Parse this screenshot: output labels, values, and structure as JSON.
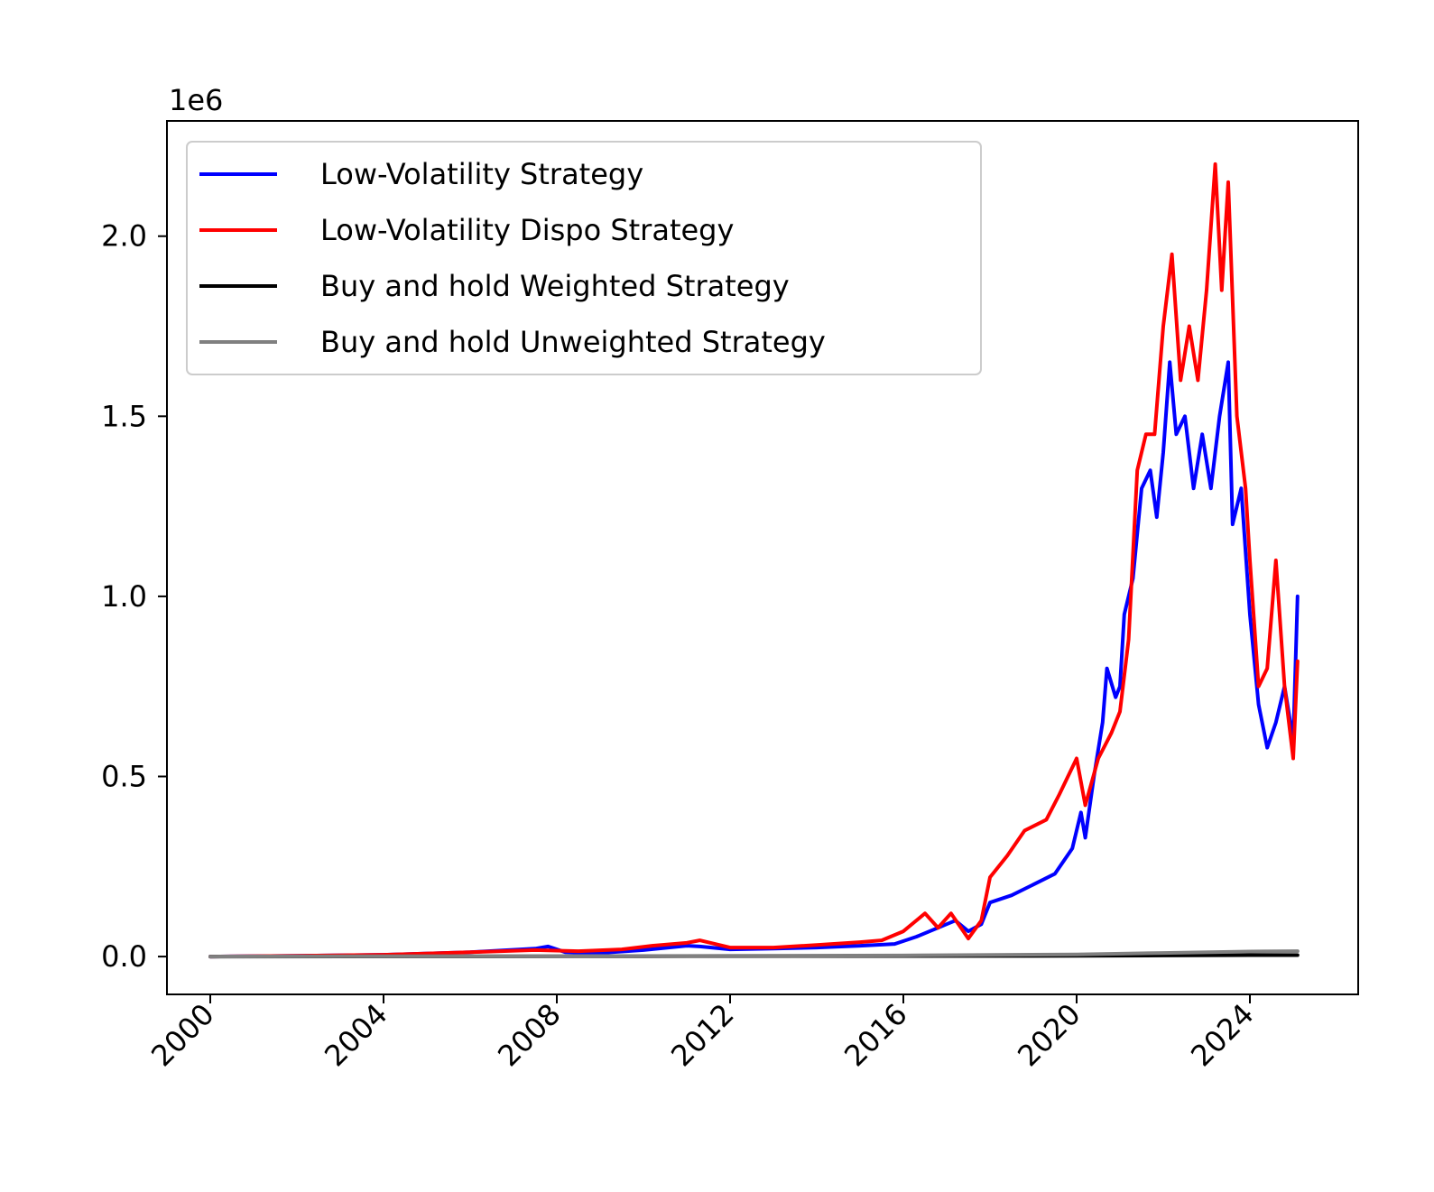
{
  "chart_data": {
    "type": "line",
    "title": "",
    "xlabel": "",
    "ylabel": "",
    "y_offset_label": "1e6",
    "xlim": [
      1999.0,
      2026.5
    ],
    "ylim": [
      -0.105,
      2.32
    ],
    "x_ticks": [
      2000,
      2004,
      2008,
      2012,
      2016,
      2020,
      2024
    ],
    "x_tick_labels": [
      "2000",
      "2004",
      "2008",
      "2012",
      "2016",
      "2020",
      "2024"
    ],
    "y_ticks": [
      0.0,
      0.5,
      1.0,
      1.5,
      2.0
    ],
    "y_tick_labels": [
      "0.0",
      "0.5",
      "1.0",
      "1.5",
      "2.0"
    ],
    "legend_position": "upper-left",
    "grid": false,
    "series": [
      {
        "name": "Low-Volatility Strategy",
        "color": "#0000ff",
        "points": [
          [
            2000.0,
            0.0
          ],
          [
            2002.0,
            0.002
          ],
          [
            2004.0,
            0.005
          ],
          [
            2006.0,
            0.012
          ],
          [
            2007.5,
            0.022
          ],
          [
            2007.8,
            0.028
          ],
          [
            2008.2,
            0.012
          ],
          [
            2009.0,
            0.01
          ],
          [
            2010.0,
            0.018
          ],
          [
            2011.0,
            0.03
          ],
          [
            2011.3,
            0.028
          ],
          [
            2012.0,
            0.02
          ],
          [
            2013.0,
            0.022
          ],
          [
            2014.0,
            0.025
          ],
          [
            2015.0,
            0.03
          ],
          [
            2015.8,
            0.035
          ],
          [
            2016.3,
            0.055
          ],
          [
            2016.8,
            0.08
          ],
          [
            2017.2,
            0.1
          ],
          [
            2017.5,
            0.07
          ],
          [
            2017.8,
            0.09
          ],
          [
            2018.0,
            0.15
          ],
          [
            2018.5,
            0.17
          ],
          [
            2019.0,
            0.2
          ],
          [
            2019.5,
            0.23
          ],
          [
            2019.9,
            0.3
          ],
          [
            2020.1,
            0.4
          ],
          [
            2020.2,
            0.33
          ],
          [
            2020.4,
            0.5
          ],
          [
            2020.6,
            0.65
          ],
          [
            2020.7,
            0.8
          ],
          [
            2020.9,
            0.72
          ],
          [
            2021.0,
            0.75
          ],
          [
            2021.1,
            0.95
          ],
          [
            2021.3,
            1.05
          ],
          [
            2021.5,
            1.3
          ],
          [
            2021.7,
            1.35
          ],
          [
            2021.85,
            1.22
          ],
          [
            2022.0,
            1.4
          ],
          [
            2022.15,
            1.65
          ],
          [
            2022.3,
            1.45
          ],
          [
            2022.5,
            1.5
          ],
          [
            2022.7,
            1.3
          ],
          [
            2022.9,
            1.45
          ],
          [
            2023.1,
            1.3
          ],
          [
            2023.3,
            1.5
          ],
          [
            2023.5,
            1.65
          ],
          [
            2023.6,
            1.2
          ],
          [
            2023.8,
            1.3
          ],
          [
            2024.0,
            0.95
          ],
          [
            2024.2,
            0.7
          ],
          [
            2024.4,
            0.58
          ],
          [
            2024.6,
            0.65
          ],
          [
            2024.8,
            0.75
          ],
          [
            2025.0,
            0.6
          ],
          [
            2025.1,
            1.0
          ]
        ]
      },
      {
        "name": "Low-Volatility Dispo Strategy",
        "color": "#ff0000",
        "points": [
          [
            2000.0,
            0.0
          ],
          [
            2002.0,
            0.002
          ],
          [
            2004.0,
            0.005
          ],
          [
            2006.0,
            0.012
          ],
          [
            2007.5,
            0.018
          ],
          [
            2008.5,
            0.015
          ],
          [
            2009.5,
            0.02
          ],
          [
            2010.2,
            0.03
          ],
          [
            2011.0,
            0.038
          ],
          [
            2011.3,
            0.045
          ],
          [
            2012.0,
            0.025
          ],
          [
            2013.0,
            0.025
          ],
          [
            2014.0,
            0.032
          ],
          [
            2015.0,
            0.04
          ],
          [
            2015.5,
            0.045
          ],
          [
            2016.0,
            0.07
          ],
          [
            2016.5,
            0.12
          ],
          [
            2016.8,
            0.08
          ],
          [
            2017.1,
            0.12
          ],
          [
            2017.5,
            0.05
          ],
          [
            2017.8,
            0.1
          ],
          [
            2018.0,
            0.22
          ],
          [
            2018.4,
            0.28
          ],
          [
            2018.8,
            0.35
          ],
          [
            2019.3,
            0.38
          ],
          [
            2019.6,
            0.45
          ],
          [
            2020.0,
            0.55
          ],
          [
            2020.2,
            0.42
          ],
          [
            2020.5,
            0.55
          ],
          [
            2020.8,
            0.62
          ],
          [
            2021.0,
            0.68
          ],
          [
            2021.2,
            0.88
          ],
          [
            2021.4,
            1.35
          ],
          [
            2021.6,
            1.45
          ],
          [
            2021.8,
            1.45
          ],
          [
            2022.0,
            1.75
          ],
          [
            2022.2,
            1.95
          ],
          [
            2022.4,
            1.6
          ],
          [
            2022.6,
            1.75
          ],
          [
            2022.8,
            1.6
          ],
          [
            2023.0,
            1.85
          ],
          [
            2023.2,
            2.2
          ],
          [
            2023.35,
            1.85
          ],
          [
            2023.5,
            2.15
          ],
          [
            2023.7,
            1.5
          ],
          [
            2023.9,
            1.3
          ],
          [
            2024.0,
            1.1
          ],
          [
            2024.2,
            0.75
          ],
          [
            2024.4,
            0.8
          ],
          [
            2024.6,
            1.1
          ],
          [
            2024.8,
            0.75
          ],
          [
            2025.0,
            0.55
          ],
          [
            2025.1,
            0.82
          ]
        ]
      },
      {
        "name": "Buy and hold Weighted Strategy",
        "color": "#000000",
        "points": [
          [
            2000.0,
            0.0
          ],
          [
            2005.0,
            0.0005
          ],
          [
            2010.0,
            0.001
          ],
          [
            2015.0,
            0.0015
          ],
          [
            2020.0,
            0.002
          ],
          [
            2022.0,
            0.003
          ],
          [
            2024.0,
            0.004
          ],
          [
            2025.1,
            0.004
          ]
        ]
      },
      {
        "name": "Buy and hold Unweighted Strategy",
        "color": "#808080",
        "points": [
          [
            2000.0,
            0.0
          ],
          [
            2004.0,
            0.001
          ],
          [
            2008.0,
            0.0015
          ],
          [
            2012.0,
            0.002
          ],
          [
            2016.0,
            0.003
          ],
          [
            2020.0,
            0.006
          ],
          [
            2022.0,
            0.01
          ],
          [
            2024.0,
            0.014
          ],
          [
            2025.1,
            0.015
          ]
        ]
      }
    ]
  }
}
